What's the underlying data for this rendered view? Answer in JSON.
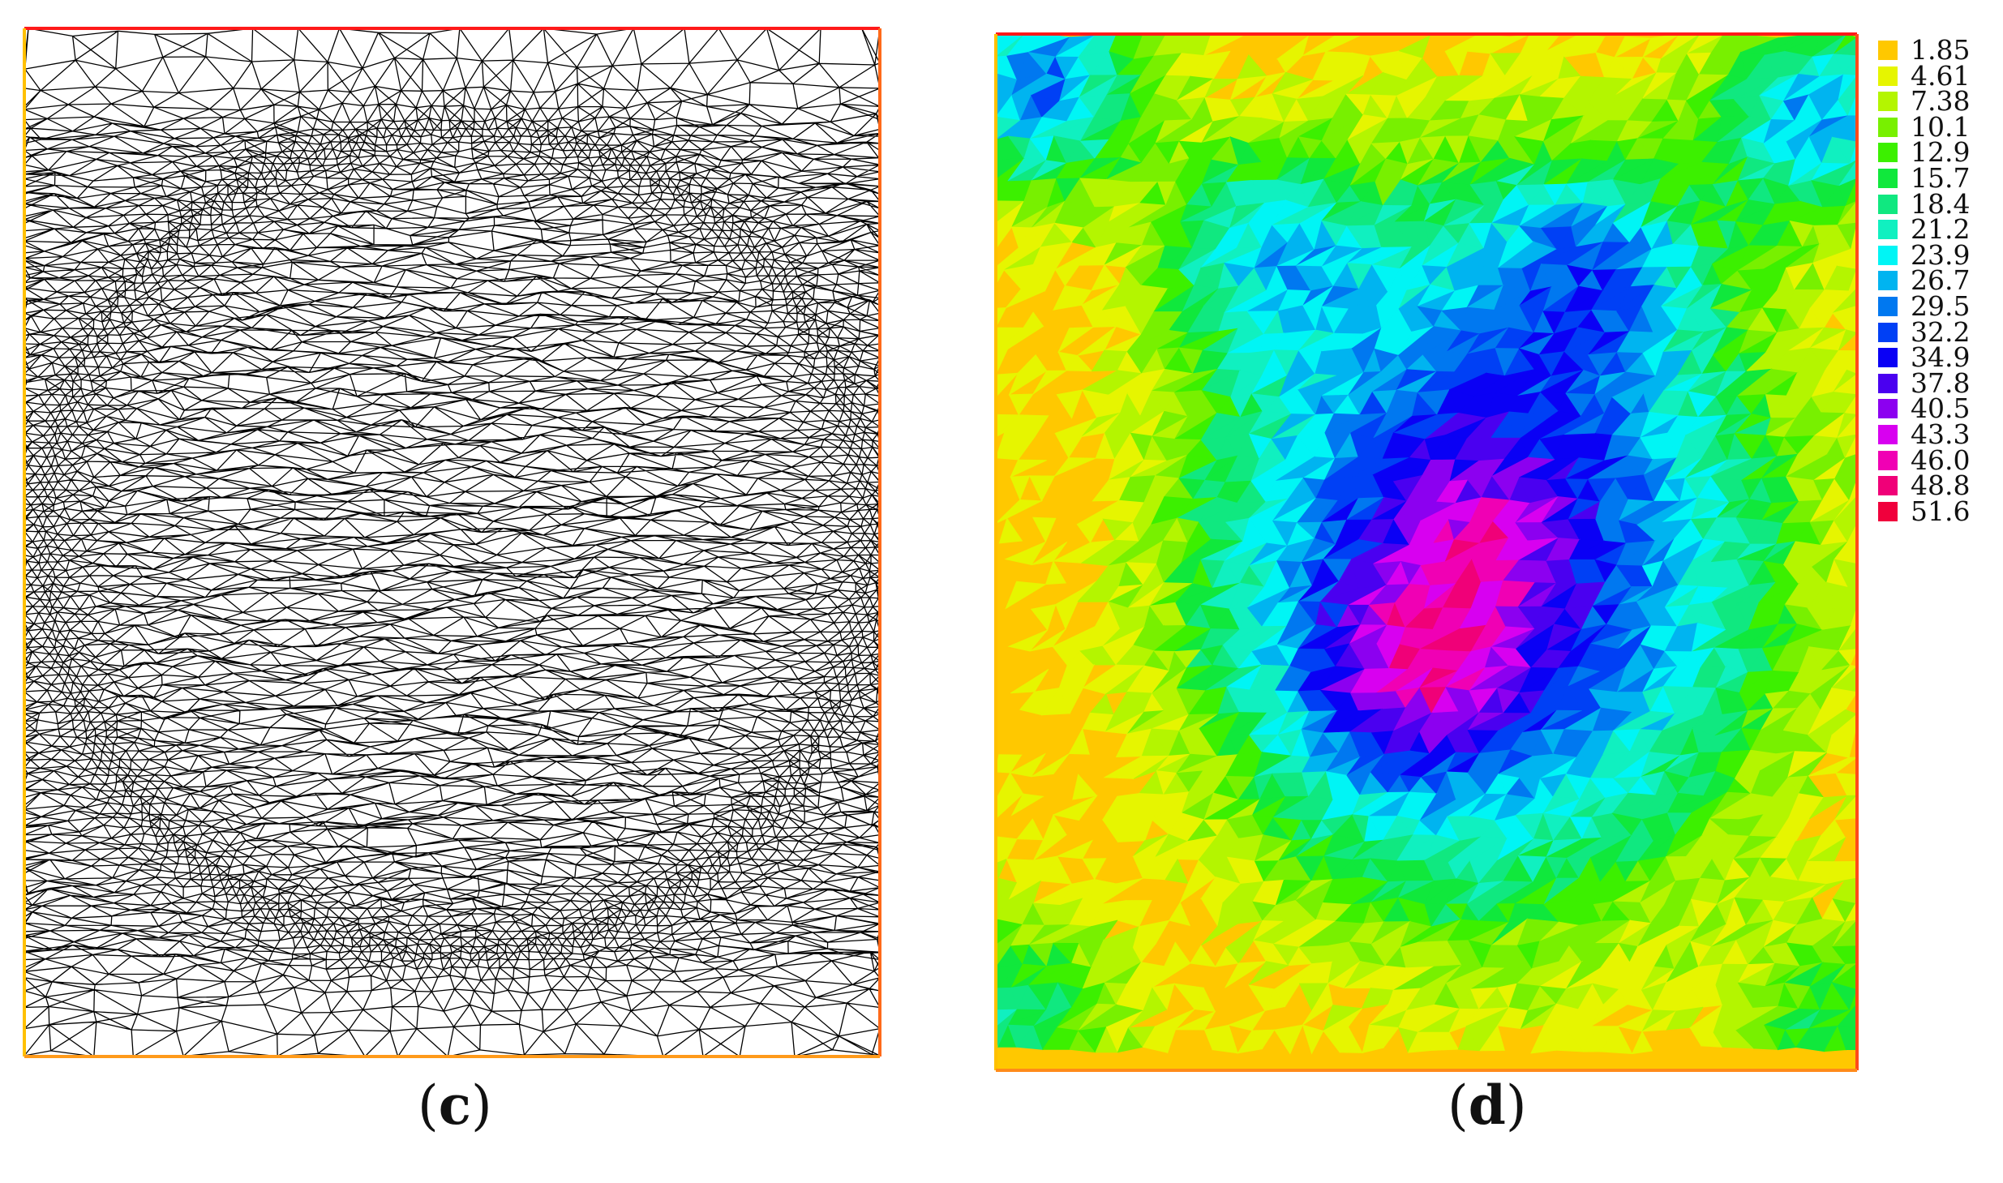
{
  "captions": {
    "left": {
      "open": "(",
      "letter": "c",
      "close": ")"
    },
    "right": {
      "open": "(",
      "letter": "d",
      "close": ")"
    }
  },
  "mesh_panel": {
    "border_colors": {
      "top": "#ff1a1a",
      "left": "#ffc000",
      "right": "#ff6a1a",
      "bottom": "#ff9a1a"
    }
  },
  "contour_panel": {
    "border_colors": {
      "top": "#ff1a1a",
      "left": "#ffc000",
      "right": "#ff4a1a",
      "bottom": "#ff8a1a"
    }
  },
  "legend": {
    "items": [
      {
        "label": "1.85",
        "color": "#ffc800"
      },
      {
        "label": "4.61",
        "color": "#e6f500"
      },
      {
        "label": "7.38",
        "color": "#b4f500"
      },
      {
        "label": "10.1",
        "color": "#78f000"
      },
      {
        "label": "12.9",
        "color": "#3cf000"
      },
      {
        "label": "15.7",
        "color": "#10e83c"
      },
      {
        "label": "18.4",
        "color": "#10e880"
      },
      {
        "label": "21.2",
        "color": "#10f0c0"
      },
      {
        "label": "23.9",
        "color": "#00f5f5"
      },
      {
        "label": "26.7",
        "color": "#00b4f0"
      },
      {
        "label": "29.5",
        "color": "#0078f0"
      },
      {
        "label": "32.2",
        "color": "#0040f5"
      },
      {
        "label": "34.9",
        "color": "#0a00f5"
      },
      {
        "label": "37.8",
        "color": "#4a00f0"
      },
      {
        "label": "40.5",
        "color": "#8c00f0"
      },
      {
        "label": "43.3",
        "color": "#d800f0"
      },
      {
        "label": "46.0",
        "color": "#f000b4"
      },
      {
        "label": "48.8",
        "color": "#f00078"
      },
      {
        "label": "51.6",
        "color": "#f0003c"
      }
    ]
  }
}
